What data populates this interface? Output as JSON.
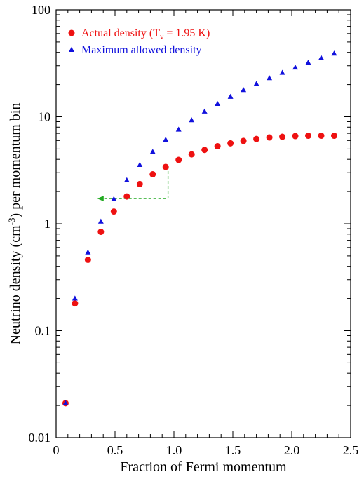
{
  "chart_data": {
    "type": "scatter",
    "xlabel": "Fraction of Fermi momentum",
    "ylabel_parts": {
      "pre": "Neutrino density (cm",
      "sup": "-3",
      "post": ") per momentum bin"
    },
    "xlim": [
      0,
      2.5
    ],
    "ylim": [
      0.01,
      100
    ],
    "yscale": "log",
    "x_ticks": [
      {
        "value": 0,
        "label": "0"
      },
      {
        "value": 0.5,
        "label": "0.5"
      },
      {
        "value": 1.0,
        "label": "1.0"
      },
      {
        "value": 1.5,
        "label": "1.5"
      },
      {
        "value": 2.0,
        "label": "2.0"
      },
      {
        "value": 2.5,
        "label": "2.5"
      }
    ],
    "y_ticks": [
      {
        "value": 0.01,
        "label": "0.01"
      },
      {
        "value": 0.1,
        "label": "0.1"
      },
      {
        "value": 1,
        "label": "1"
      },
      {
        "value": 10,
        "label": "10"
      },
      {
        "value": 100,
        "label": "100"
      }
    ],
    "legend_position": "top-left",
    "series": [
      {
        "name_parts": {
          "pre": "Actual density (T",
          "sub": "ν",
          "post": " = 1.95 K)"
        },
        "marker": "circle",
        "color": "#ee1111",
        "x": [
          0.08,
          0.16,
          0.27,
          0.38,
          0.49,
          0.6,
          0.71,
          0.82,
          0.93,
          1.04,
          1.15,
          1.26,
          1.37,
          1.48,
          1.59,
          1.7,
          1.81,
          1.92,
          2.03,
          2.14,
          2.25,
          2.36
        ],
        "y": [
          0.021,
          0.18,
          0.46,
          0.84,
          1.3,
          1.8,
          2.35,
          2.9,
          3.4,
          3.95,
          4.45,
          4.9,
          5.3,
          5.65,
          5.95,
          6.2,
          6.4,
          6.5,
          6.6,
          6.65,
          6.65,
          6.65
        ]
      },
      {
        "name": "Maximum allowed density",
        "marker": "triangle",
        "color": "#1111dd",
        "x": [
          0.08,
          0.16,
          0.27,
          0.38,
          0.49,
          0.6,
          0.71,
          0.82,
          0.93,
          1.04,
          1.15,
          1.26,
          1.37,
          1.48,
          1.59,
          1.7,
          1.81,
          1.92,
          2.03,
          2.14,
          2.25,
          2.36
        ],
        "y": [
          0.021,
          0.2,
          0.54,
          1.05,
          1.7,
          2.55,
          3.55,
          4.7,
          6.1,
          7.6,
          9.3,
          11.2,
          13.2,
          15.4,
          17.8,
          20.3,
          23.0,
          25.8,
          28.9,
          32.1,
          35.5,
          39.0
        ]
      }
    ],
    "annotation": {
      "type": "dashed-arrow",
      "color": "#22aa22",
      "path_data": [
        [
          0.95,
          3.45
        ],
        [
          0.95,
          1.72
        ],
        [
          0.35,
          1.72
        ]
      ]
    }
  }
}
